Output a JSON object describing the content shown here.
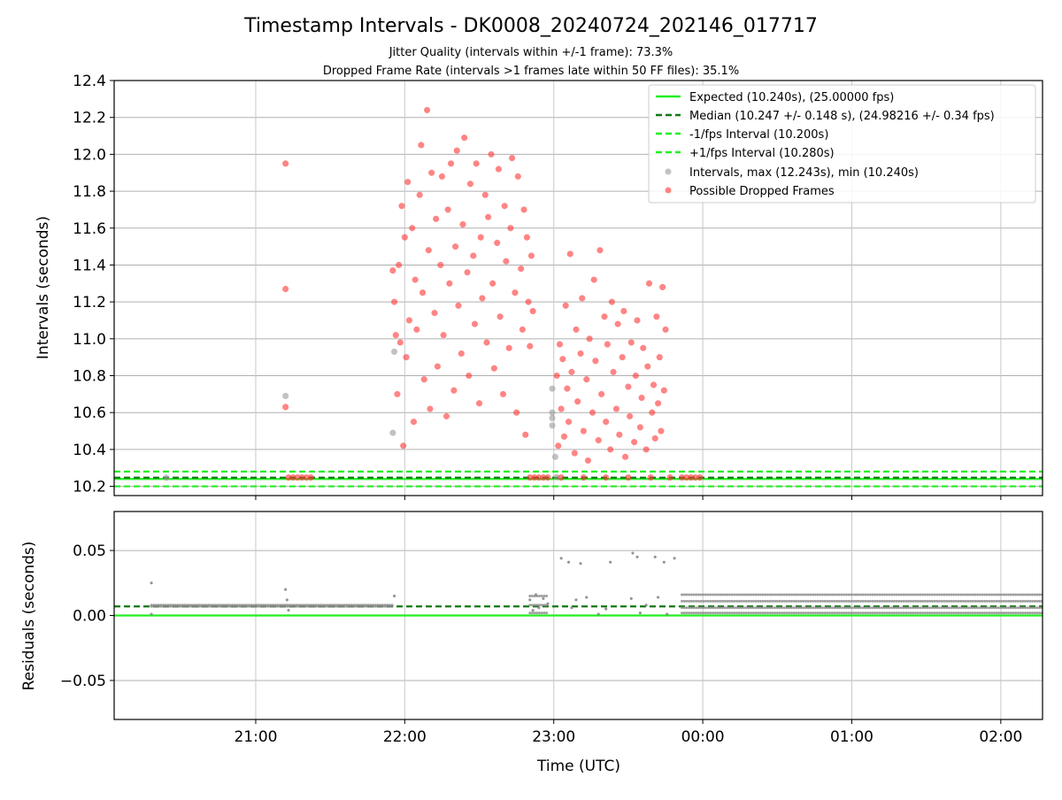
{
  "chart_data": [
    {
      "panel": "intervals",
      "type": "scatter",
      "title": "Timestamp Intervals - DK0008_20240724_202146_017717",
      "subtitles": [
        "Jitter Quality (intervals within +/-1 frame): 73.3%",
        "Dropped Frame Rate (intervals >1 frames late within 50 FF files): 35.1%"
      ],
      "xlabel": "",
      "ylabel": "Intervals (seconds)",
      "x_unit": "hours UTC (20.0 = 20:00 on 2024-07-24; values above 24 are after midnight)",
      "xlim": [
        20.05,
        26.28
      ],
      "ylim": [
        10.15,
        12.4
      ],
      "yticks": [
        "10.2",
        "10.4",
        "10.6",
        "10.8",
        "11.0",
        "11.2",
        "11.4",
        "11.6",
        "11.8",
        "12.0",
        "12.2",
        "12.4"
      ],
      "ytick_values": [
        10.2,
        10.4,
        10.6,
        10.8,
        11.0,
        11.2,
        11.4,
        11.6,
        11.8,
        12.0,
        12.2,
        12.4
      ],
      "grid": true,
      "legend_position": "top-right",
      "lines": [
        {
          "name": "Expected (10.240s), (25.00000 fps)",
          "y": 10.24,
          "style": "solid",
          "color": "#22ee22"
        },
        {
          "name": "Median (10.247 +/- 0.148 s), (24.98216 +/- 0.34 fps)",
          "y": 10.247,
          "style": "dashed",
          "color": "#117711"
        },
        {
          "name": "-1/fps Interval (10.200s)",
          "y": 10.2,
          "style": "dashed",
          "color": "#22ee22"
        },
        {
          "name": "+1/fps Interval (10.280s)",
          "y": 10.28,
          "style": "dashed",
          "color": "#22ee22"
        }
      ],
      "series": [
        {
          "name": "Intervals, max (12.243s), min (10.240s)",
          "color": "#999999",
          "points": [
            [
              21.2,
              10.69
            ],
            [
              21.93,
              10.93
            ],
            [
              21.92,
              10.49
            ],
            [
              22.99,
              10.73
            ],
            [
              22.99,
              10.6
            ],
            [
              22.99,
              10.57
            ],
            [
              22.99,
              10.53
            ],
            [
              23.01,
              10.36
            ],
            [
              23.02,
              10.25
            ],
            [
              20.4,
              10.247
            ]
          ]
        },
        {
          "name": "Possible Dropped Frames",
          "color": "#ff3333",
          "points": [
            [
              21.2,
              11.95
            ],
            [
              21.2,
              11.27
            ],
            [
              21.2,
              10.63
            ],
            [
              21.92,
              11.37
            ],
            [
              21.93,
              11.2
            ],
            [
              21.94,
              11.02
            ],
            [
              21.95,
              10.7
            ],
            [
              21.96,
              11.4
            ],
            [
              21.97,
              10.98
            ],
            [
              21.98,
              11.72
            ],
            [
              21.99,
              10.42
            ],
            [
              22.0,
              11.55
            ],
            [
              22.01,
              10.9
            ],
            [
              22.02,
              11.85
            ],
            [
              22.03,
              11.1
            ],
            [
              22.05,
              11.6
            ],
            [
              22.06,
              10.55
            ],
            [
              22.07,
              11.32
            ],
            [
              22.08,
              11.05
            ],
            [
              22.1,
              11.78
            ],
            [
              22.11,
              12.05
            ],
            [
              22.12,
              11.25
            ],
            [
              22.13,
              10.78
            ],
            [
              22.15,
              12.24
            ],
            [
              22.16,
              11.48
            ],
            [
              22.17,
              10.62
            ],
            [
              22.18,
              11.9
            ],
            [
              22.2,
              11.14
            ],
            [
              22.21,
              11.65
            ],
            [
              22.22,
              10.85
            ],
            [
              22.24,
              11.4
            ],
            [
              22.25,
              11.88
            ],
            [
              22.26,
              11.02
            ],
            [
              22.28,
              10.58
            ],
            [
              22.29,
              11.7
            ],
            [
              22.3,
              11.3
            ],
            [
              22.31,
              11.95
            ],
            [
              22.33,
              10.72
            ],
            [
              22.34,
              11.5
            ],
            [
              22.35,
              12.02
            ],
            [
              22.36,
              11.18
            ],
            [
              22.38,
              10.92
            ],
            [
              22.39,
              11.62
            ],
            [
              22.4,
              12.09
            ],
            [
              22.42,
              11.36
            ],
            [
              22.43,
              10.8
            ],
            [
              22.44,
              11.84
            ],
            [
              22.46,
              11.45
            ],
            [
              22.47,
              11.08
            ],
            [
              22.48,
              11.95
            ],
            [
              22.5,
              10.65
            ],
            [
              22.51,
              11.55
            ],
            [
              22.52,
              11.22
            ],
            [
              22.54,
              11.78
            ],
            [
              22.55,
              10.98
            ],
            [
              22.56,
              11.66
            ],
            [
              22.58,
              12.0
            ],
            [
              22.59,
              11.3
            ],
            [
              22.6,
              10.84
            ],
            [
              22.62,
              11.52
            ],
            [
              22.63,
              11.92
            ],
            [
              22.64,
              11.12
            ],
            [
              22.66,
              10.7
            ],
            [
              22.67,
              11.72
            ],
            [
              22.68,
              11.42
            ],
            [
              22.7,
              10.95
            ],
            [
              22.71,
              11.6
            ],
            [
              22.72,
              11.98
            ],
            [
              22.74,
              11.25
            ],
            [
              22.75,
              10.6
            ],
            [
              22.76,
              11.88
            ],
            [
              22.78,
              11.38
            ],
            [
              22.79,
              11.05
            ],
            [
              22.8,
              11.7
            ],
            [
              22.81,
              10.48
            ],
            [
              22.82,
              11.55
            ],
            [
              22.83,
              11.2
            ],
            [
              22.84,
              10.96
            ],
            [
              22.85,
              11.45
            ],
            [
              22.86,
              11.15
            ],
            [
              23.02,
              10.8
            ],
            [
              23.03,
              10.42
            ],
            [
              23.04,
              10.97
            ],
            [
              23.05,
              10.62
            ],
            [
              23.06,
              10.89
            ],
            [
              23.07,
              10.47
            ],
            [
              23.08,
              11.18
            ],
            [
              23.09,
              10.73
            ],
            [
              23.1,
              10.55
            ],
            [
              23.11,
              11.46
            ],
            [
              23.12,
              10.82
            ],
            [
              23.14,
              10.38
            ],
            [
              23.15,
              11.05
            ],
            [
              23.16,
              10.66
            ],
            [
              23.18,
              10.92
            ],
            [
              23.19,
              11.22
            ],
            [
              23.2,
              10.5
            ],
            [
              23.22,
              10.78
            ],
            [
              23.23,
              10.34
            ],
            [
              23.24,
              11.0
            ],
            [
              23.26,
              10.6
            ],
            [
              23.27,
              11.32
            ],
            [
              23.28,
              10.88
            ],
            [
              23.3,
              10.45
            ],
            [
              23.31,
              11.48
            ],
            [
              23.32,
              10.7
            ],
            [
              23.34,
              11.12
            ],
            [
              23.35,
              10.55
            ],
            [
              23.36,
              10.97
            ],
            [
              23.38,
              10.4
            ],
            [
              23.39,
              11.2
            ],
            [
              23.4,
              10.82
            ],
            [
              23.42,
              10.62
            ],
            [
              23.43,
              11.08
            ],
            [
              23.44,
              10.48
            ],
            [
              23.46,
              10.9
            ],
            [
              23.47,
              11.15
            ],
            [
              23.48,
              10.36
            ],
            [
              23.5,
              10.74
            ],
            [
              23.51,
              10.58
            ],
            [
              23.52,
              10.98
            ],
            [
              23.54,
              10.44
            ],
            [
              23.55,
              10.8
            ],
            [
              23.56,
              11.1
            ],
            [
              23.58,
              10.52
            ],
            [
              23.59,
              10.68
            ],
            [
              23.6,
              10.95
            ],
            [
              23.62,
              10.4
            ],
            [
              23.63,
              10.85
            ],
            [
              23.64,
              11.3
            ],
            [
              23.66,
              10.6
            ],
            [
              23.67,
              10.75
            ],
            [
              23.68,
              10.46
            ],
            [
              23.69,
              11.12
            ],
            [
              23.7,
              10.65
            ],
            [
              23.71,
              10.9
            ],
            [
              23.72,
              10.5
            ],
            [
              23.73,
              11.28
            ],
            [
              23.74,
              10.72
            ],
            [
              23.75,
              11.05
            ],
            [
              21.22,
              10.248
            ],
            [
              21.25,
              10.248
            ],
            [
              21.28,
              10.248
            ],
            [
              21.31,
              10.248
            ],
            [
              21.34,
              10.248
            ],
            [
              21.37,
              10.248
            ],
            [
              22.84,
              10.248
            ],
            [
              22.87,
              10.248
            ],
            [
              22.9,
              10.248
            ],
            [
              22.93,
              10.248
            ],
            [
              22.96,
              10.248
            ],
            [
              23.05,
              10.248
            ],
            [
              23.2,
              10.248
            ],
            [
              23.35,
              10.248
            ],
            [
              23.5,
              10.248
            ],
            [
              23.65,
              10.248
            ],
            [
              23.78,
              10.248
            ],
            [
              23.86,
              10.248
            ],
            [
              23.89,
              10.248
            ],
            [
              23.92,
              10.248
            ],
            [
              23.95,
              10.248
            ],
            [
              23.98,
              10.248
            ]
          ]
        }
      ]
    },
    {
      "panel": "residuals",
      "type": "scatter",
      "xlabel": "Time (UTC)",
      "ylabel": "Residuals (seconds)",
      "x_unit": "hours UTC (20.0 = 20:00 on 2024-07-24; values above 24 are after midnight)",
      "xlim": [
        20.05,
        26.28
      ],
      "ylim": [
        -0.08,
        0.08
      ],
      "xticks": [
        "21:00",
        "22:00",
        "23:00",
        "00:00",
        "01:00",
        "02:00"
      ],
      "xtick_values": [
        21,
        22,
        23,
        24,
        25,
        26
      ],
      "yticks": [
        "−0.05",
        "0.00",
        "0.05"
      ],
      "ytick_values": [
        -0.05,
        0.0,
        0.05
      ],
      "grid": true,
      "lines": [
        {
          "y": 0.0,
          "style": "solid",
          "color": "#22ee22"
        },
        {
          "y": 0.007,
          "style": "dashed",
          "color": "#117711"
        }
      ],
      "series": [
        {
          "color": "#888888",
          "bands": [
            {
              "x_from": 20.3,
              "x_to": 21.92,
              "y_values": [
                0.007,
                0.008
              ]
            },
            {
              "x_from": 22.84,
              "x_to": 22.96,
              "y_values": [
                0.015,
                0.008,
                0.002
              ]
            },
            {
              "x_from": 23.86,
              "x_to": 26.28,
              "y_values": [
                0.016,
                0.011,
                0.006,
                0.002
              ]
            }
          ],
          "points": [
            [
              20.3,
              0.025
            ],
            [
              20.3,
              0.001
            ],
            [
              21.2,
              0.02
            ],
            [
              21.21,
              0.012
            ],
            [
              21.22,
              0.004
            ],
            [
              21.93,
              0.015
            ],
            [
              23.05,
              0.044
            ],
            [
              23.1,
              0.041
            ],
            [
              23.18,
              0.04
            ],
            [
              23.38,
              0.041
            ],
            [
              23.53,
              0.048
            ],
            [
              23.56,
              0.045
            ],
            [
              23.68,
              0.045
            ],
            [
              23.74,
              0.041
            ],
            [
              23.81,
              0.044
            ],
            [
              22.84,
              0.012
            ],
            [
              22.86,
              0.004
            ],
            [
              22.88,
              0.016
            ],
            [
              22.9,
              0.006
            ],
            [
              22.93,
              0.013
            ],
            [
              22.96,
              0.009
            ],
            [
              23.12,
              0.006
            ],
            [
              23.15,
              0.012
            ],
            [
              23.22,
              0.014
            ],
            [
              23.3,
              0.001
            ],
            [
              23.35,
              0.005
            ],
            [
              23.52,
              0.013
            ],
            [
              23.58,
              0.002
            ],
            [
              23.62,
              0.008
            ],
            [
              23.7,
              0.014
            ],
            [
              23.76,
              0.001
            ]
          ]
        }
      ]
    }
  ]
}
